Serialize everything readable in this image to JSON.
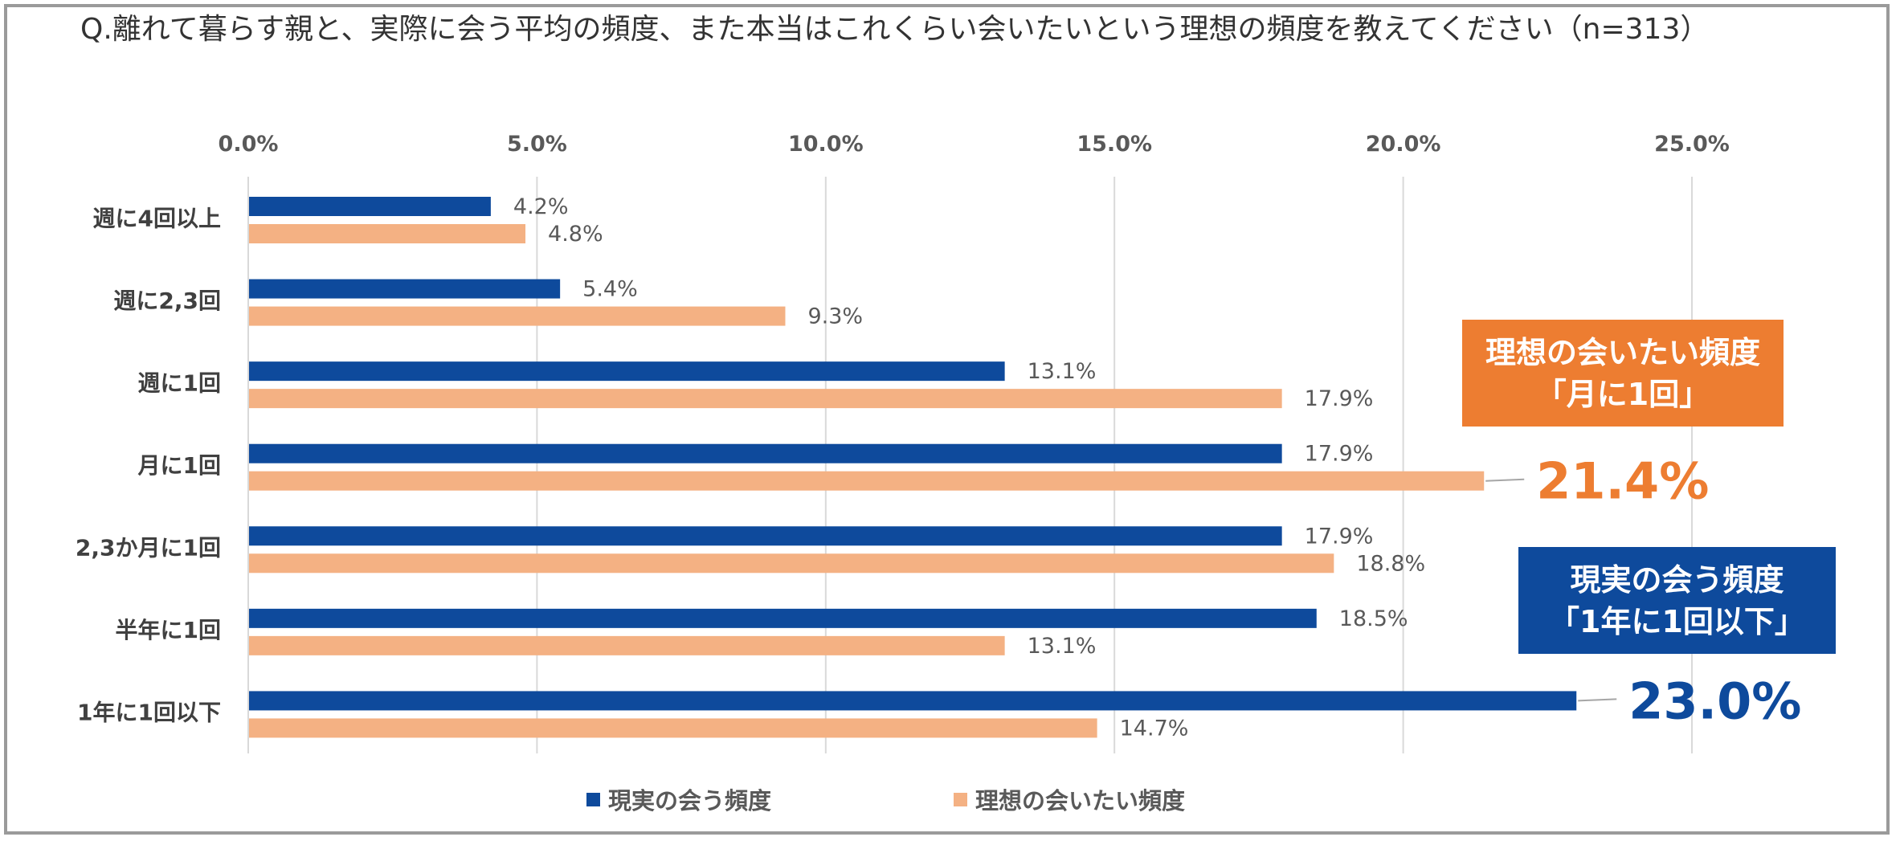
{
  "title": "Q.離れて暮らす親と、実際に会う平均の頻度、また本当はこれくらい会いたいという理想の頻度を教えてください（n=313）",
  "chart_data": {
    "type": "bar",
    "orientation": "horizontal",
    "categories": [
      "週に4回以上",
      "週に2,3回",
      "週に1回",
      "月に1回",
      "2,3か月に1回",
      "半年に1回",
      "1年に1回以下"
    ],
    "series": [
      {
        "name": "現実の会う頻度",
        "color": "#0E4A9C",
        "values": [
          4.2,
          5.4,
          13.1,
          17.9,
          17.9,
          18.5,
          23.0
        ],
        "labels": [
          "4.2%",
          "5.4%",
          "13.1%",
          "17.9%",
          "17.9%",
          "18.5%",
          "23.0%"
        ]
      },
      {
        "name": "理想の会いたい頻度",
        "color": "#F4B183",
        "values": [
          4.8,
          9.3,
          17.9,
          21.4,
          18.8,
          13.1,
          14.7
        ],
        "labels": [
          "4.8%",
          "9.3%",
          "17.9%",
          "21.4%",
          "18.8%",
          "13.1%",
          "14.7%"
        ]
      }
    ],
    "xlim": [
      0,
      25
    ],
    "ticks": [
      "0.0%",
      "5.0%",
      "10.0%",
      "15.0%",
      "20.0%",
      "25.0%"
    ],
    "legend_position": "bottom",
    "grid": true
  },
  "callouts": {
    "ideal": {
      "line1": "理想の会いたい頻度",
      "line2": "「月に1回」",
      "color": "#ED7D31"
    },
    "actual": {
      "line1": "現実の会う頻度",
      "line2": "「1年に1回以下」",
      "color": "#0E4A9C"
    }
  }
}
